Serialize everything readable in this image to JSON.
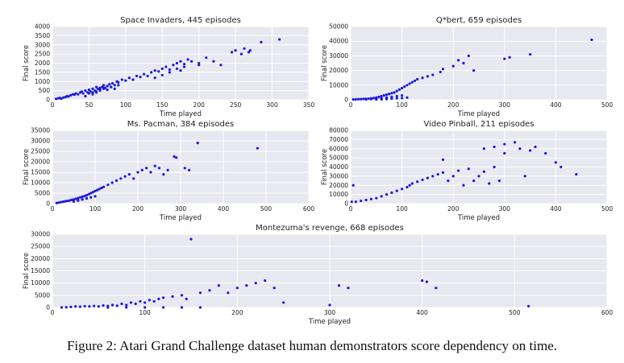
{
  "figure_caption": "Figure 2: Atari Grand Challenge dataset human demonstrators score dependency on time.",
  "style": {
    "plot_bg": "#e8e8f0",
    "grid": "#ffffff",
    "point_color": "#1a1adb",
    "text": "#222222"
  },
  "chart_data": [
    {
      "type": "scatter",
      "title": "Space Invaders, 445 episodes",
      "xlabel": "Time played",
      "ylabel": "Final score",
      "xlim": [
        0,
        350
      ],
      "ylim": [
        0,
        4000
      ],
      "xticks": [
        "0",
        "50",
        "100",
        "150",
        "200",
        "250",
        "300",
        "350"
      ],
      "yticks": [
        "0",
        "500",
        "1000",
        "1500",
        "2000",
        "2500",
        "3000",
        "3500",
        "4000"
      ],
      "x": [
        5,
        8,
        10,
        12,
        15,
        18,
        20,
        22,
        25,
        28,
        30,
        32,
        35,
        38,
        40,
        42,
        45,
        48,
        50,
        52,
        55,
        58,
        60,
        62,
        65,
        68,
        70,
        72,
        75,
        78,
        80,
        82,
        85,
        88,
        90,
        95,
        100,
        105,
        110,
        115,
        120,
        125,
        130,
        135,
        140,
        145,
        150,
        155,
        160,
        165,
        170,
        175,
        180,
        185,
        190,
        200,
        210,
        220,
        230,
        245,
        250,
        258,
        262,
        268,
        270,
        285,
        310,
        55,
        60,
        65,
        70,
        75,
        80,
        85,
        90,
        45,
        50,
        55,
        60,
        65,
        70,
        75,
        140,
        150,
        160,
        170,
        175,
        180,
        200
      ],
      "y": [
        50,
        80,
        100,
        60,
        120,
        150,
        200,
        180,
        250,
        300,
        280,
        350,
        300,
        400,
        450,
        350,
        500,
        400,
        550,
        450,
        600,
        500,
        700,
        600,
        650,
        700,
        800,
        650,
        750,
        850,
        700,
        900,
        800,
        1000,
        950,
        1100,
        1050,
        1200,
        1100,
        1300,
        1250,
        1400,
        1300,
        1500,
        1600,
        1550,
        1700,
        1800,
        1650,
        1900,
        2000,
        2100,
        1950,
        2200,
        2100,
        2000,
        2300,
        2100,
        1900,
        2600,
        2700,
        2500,
        2800,
        2600,
        2700,
        3150,
        3300,
        300,
        400,
        500,
        650,
        550,
        700,
        600,
        800,
        200,
        350,
        400,
        450,
        550,
        600,
        750,
        1200,
        1350,
        1500,
        1700,
        1600,
        1800,
        1900
      ]
    },
    {
      "type": "scatter",
      "title": "Q*bert, 659 episodes",
      "xlabel": "Time played",
      "ylabel": "Final score",
      "xlim": [
        0,
        500
      ],
      "ylim": [
        0,
        50000
      ],
      "xticks": [
        "0",
        "100",
        "200",
        "300",
        "400",
        "500"
      ],
      "yticks": [
        "0",
        "10000",
        "20000",
        "30000",
        "40000",
        "50000"
      ],
      "x": [
        5,
        10,
        15,
        20,
        25,
        30,
        35,
        40,
        45,
        50,
        55,
        60,
        65,
        70,
        75,
        80,
        85,
        90,
        95,
        100,
        105,
        110,
        115,
        120,
        125,
        130,
        140,
        150,
        160,
        175,
        180,
        200,
        210,
        220,
        230,
        240,
        300,
        310,
        350,
        470,
        30,
        40,
        50,
        60,
        70,
        80,
        90,
        100,
        60,
        70,
        80,
        90,
        100,
        110,
        50,
        60,
        70,
        80
      ],
      "y": [
        200,
        300,
        400,
        500,
        600,
        700,
        800,
        1000,
        1200,
        1500,
        2000,
        2500,
        3000,
        3500,
        4000,
        4500,
        5000,
        6000,
        7000,
        8000,
        9000,
        10000,
        11000,
        12000,
        13000,
        14000,
        15000,
        16000,
        17000,
        19000,
        21000,
        23000,
        27000,
        25000,
        30000,
        20000,
        28000,
        29000,
        31000,
        41000,
        200,
        500,
        800,
        1200,
        1500,
        2000,
        2500,
        3000,
        300,
        500,
        800,
        1000,
        1200,
        1500,
        300,
        500,
        700,
        900
      ]
    },
    {
      "type": "scatter",
      "title": "Ms. Pacman, 384 episodes",
      "xlabel": "Time played",
      "ylabel": "Final score",
      "xlim": [
        0,
        600
      ],
      "ylim": [
        0,
        35000
      ],
      "xticks": [
        "0",
        "100",
        "200",
        "300",
        "400",
        "500",
        "600"
      ],
      "yticks": [
        "0",
        "5000",
        "10000",
        "15000",
        "20000",
        "25000",
        "30000",
        "35000"
      ],
      "x": [
        10,
        15,
        20,
        25,
        30,
        35,
        40,
        45,
        50,
        55,
        60,
        65,
        70,
        75,
        80,
        85,
        90,
        95,
        100,
        105,
        110,
        115,
        120,
        130,
        140,
        150,
        160,
        170,
        180,
        190,
        200,
        210,
        220,
        230,
        240,
        250,
        260,
        270,
        285,
        290,
        310,
        320,
        340,
        480,
        60,
        70,
        80,
        90,
        100,
        50,
        60,
        70,
        80
      ],
      "y": [
        300,
        500,
        700,
        900,
        1100,
        1300,
        1500,
        1800,
        2000,
        2300,
        2600,
        3000,
        3300,
        3600,
        4000,
        4500,
        5000,
        5500,
        6000,
        6500,
        7000,
        7500,
        8000,
        9000,
        10000,
        11000,
        12000,
        13000,
        14000,
        12000,
        15000,
        16000,
        17000,
        15000,
        18000,
        17000,
        14000,
        16000,
        22500,
        22000,
        17000,
        16000,
        29000,
        26500,
        1500,
        2000,
        2500,
        3000,
        3500,
        1000,
        1500,
        2000,
        2500
      ]
    },
    {
      "type": "scatter",
      "title": "Video Pinball, 211 episodes",
      "xlabel": "Time played",
      "ylabel": "Final score",
      "xlim": [
        0,
        500
      ],
      "ylim": [
        0,
        80000
      ],
      "xticks": [
        "0",
        "100",
        "200",
        "300",
        "400",
        "500"
      ],
      "yticks": [
        "0",
        "10000",
        "20000",
        "30000",
        "40000",
        "50000",
        "60000",
        "70000",
        "80000"
      ],
      "x": [
        5,
        10,
        20,
        30,
        40,
        50,
        60,
        70,
        80,
        90,
        100,
        110,
        115,
        120,
        130,
        140,
        150,
        160,
        170,
        180,
        190,
        200,
        210,
        220,
        230,
        240,
        250,
        260,
        270,
        280,
        290,
        300,
        320,
        330,
        340,
        350,
        360,
        380,
        400,
        410,
        440,
        2,
        180,
        260,
        280,
        300
      ],
      "y": [
        20000,
        2000,
        3000,
        4000,
        5000,
        6000,
        8000,
        10000,
        12000,
        14000,
        16000,
        18000,
        20000,
        22000,
        24000,
        26000,
        28000,
        30000,
        32000,
        34000,
        25000,
        30000,
        36000,
        20000,
        38000,
        25000,
        30000,
        35000,
        22000,
        40000,
        25000,
        65000,
        67000,
        60000,
        30000,
        58000,
        62000,
        55000,
        45000,
        40000,
        32000,
        2000,
        48000,
        60000,
        62000,
        55000
      ]
    },
    {
      "type": "scatter",
      "title": "Montezuma's revenge, 668 episodes",
      "xlabel": "Time played",
      "ylabel": "Final score",
      "xlim": [
        0,
        600
      ],
      "ylim": [
        0,
        30000
      ],
      "xticks": [
        "0",
        "100",
        "200",
        "300",
        "400",
        "500",
        "600"
      ],
      "yticks": [
        "0",
        "5000",
        "10000",
        "15000",
        "20000",
        "25000",
        "30000"
      ],
      "x": [
        10,
        15,
        20,
        25,
        30,
        35,
        40,
        45,
        50,
        55,
        60,
        65,
        70,
        75,
        80,
        85,
        90,
        95,
        100,
        105,
        110,
        115,
        120,
        130,
        140,
        145,
        150,
        160,
        170,
        180,
        190,
        200,
        210,
        220,
        230,
        240,
        250,
        300,
        310,
        320,
        400,
        405,
        415,
        515,
        60,
        80,
        100,
        120,
        140,
        160
      ],
      "y": [
        0,
        100,
        200,
        400,
        300,
        500,
        400,
        600,
        400,
        800,
        600,
        1000,
        700,
        1500,
        1000,
        2000,
        1500,
        2500,
        2000,
        3000,
        2500,
        3500,
        4000,
        4500,
        5000,
        3500,
        28000,
        6000,
        7000,
        9000,
        6000,
        8000,
        9000,
        10000,
        11000,
        8000,
        2000,
        1000,
        9000,
        8000,
        11000,
        10500,
        8000,
        500,
        0,
        0,
        0,
        0,
        0,
        0
      ]
    }
  ]
}
